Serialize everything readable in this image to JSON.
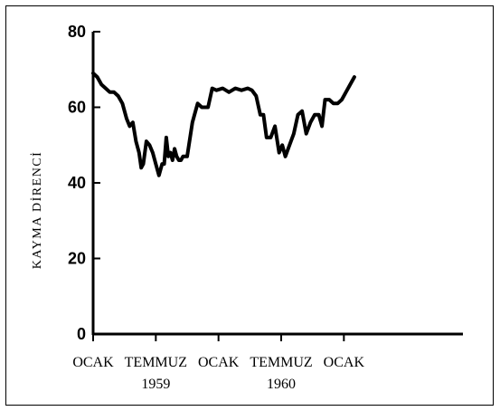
{
  "chart_data": {
    "type": "line",
    "title": "",
    "ylabel": "KAYMA DİRENCİ",
    "xlabel": "",
    "ylim": [
      0,
      80
    ],
    "yticks": [
      0,
      20,
      40,
      60,
      80
    ],
    "xlim": [
      0,
      36
    ],
    "xticks": [
      {
        "x": 0,
        "label": "OCAK",
        "sublabel": ""
      },
      {
        "x": 6,
        "label": "TEMMUZ",
        "sublabel": "1959"
      },
      {
        "x": 12,
        "label": "OCAK",
        "sublabel": ""
      },
      {
        "x": 18,
        "label": "TEMMUZ",
        "sublabel": "1960"
      },
      {
        "x": 24,
        "label": "OCAK",
        "sublabel": ""
      }
    ],
    "grid": false,
    "series": [
      {
        "x": [
          0,
          0.4,
          0.8,
          1.2,
          1.6,
          2.0,
          2.4,
          2.8,
          3.2,
          3.5,
          3.8,
          4.1,
          4.4,
          4.6,
          4.8,
          5.1,
          5.4,
          5.7,
          6.0,
          6.3,
          6.6,
          6.8,
          7.0,
          7.2,
          7.4,
          7.6,
          7.8,
          8.0,
          8.2,
          8.4,
          8.6,
          9.0,
          9.5,
          9.7,
          10.0,
          10.4,
          11.0,
          11.4,
          11.8,
          12.4,
          13.0,
          13.6,
          14.2,
          14.8,
          15.2,
          15.6,
          16.0,
          16.3,
          16.6,
          17.0,
          17.4,
          17.8,
          18.1,
          18.4,
          18.8,
          19.2,
          19.6,
          20.0,
          20.4,
          20.8,
          21.2,
          21.6,
          21.9,
          22.2,
          22.6,
          23.0,
          23.4,
          23.8,
          24.2,
          24.6,
          25.0
        ],
        "y": [
          69,
          68,
          66,
          65,
          64,
          64,
          63,
          61,
          57,
          55,
          56,
          51,
          48,
          44,
          45,
          51,
          50,
          48,
          45,
          42,
          45,
          45,
          52,
          47,
          48,
          46,
          49,
          47,
          46,
          46,
          47,
          47,
          56,
          58,
          61,
          60,
          60,
          65,
          64.5,
          65,
          64,
          65,
          64.5,
          65,
          64.5,
          63,
          58,
          58,
          52,
          52,
          55,
          48,
          50,
          47,
          50,
          53,
          58,
          59,
          53,
          56,
          58,
          58,
          55,
          62,
          62,
          61,
          61,
          62,
          64,
          66,
          68
        ]
      }
    ]
  }
}
